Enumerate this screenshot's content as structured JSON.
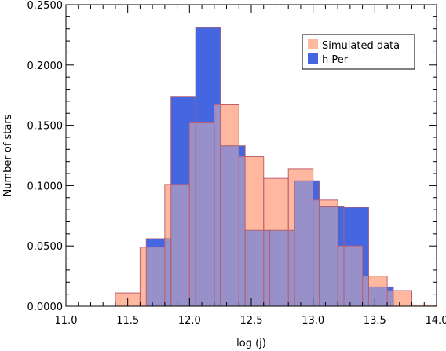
{
  "chart_data": {
    "type": "bar",
    "xlabel": "log (j)",
    "ylabel": "Number of stars",
    "xlim": [
      11.0,
      14.0
    ],
    "ylim": [
      0.0,
      0.25
    ],
    "x_ticks": [
      "11.0",
      "11.5",
      "12.0",
      "12.5",
      "13.0",
      "13.5",
      "14.0"
    ],
    "y_ticks": [
      "0.0000",
      "0.0500",
      "0.1000",
      "0.1500",
      "0.2000",
      "0.2500"
    ],
    "legend_position": "top-right",
    "series": [
      {
        "name": "h Per",
        "color": "#4466e0",
        "bins": [
          {
            "x0": 11.65,
            "x1": 11.85,
            "value": 0.056
          },
          {
            "x0": 11.85,
            "x1": 12.05,
            "value": 0.174
          },
          {
            "x0": 12.05,
            "x1": 12.25,
            "value": 0.231
          },
          {
            "x0": 12.25,
            "x1": 12.45,
            "value": 0.133
          },
          {
            "x0": 12.45,
            "x1": 12.65,
            "value": 0.063
          },
          {
            "x0": 12.65,
            "x1": 12.85,
            "value": 0.063
          },
          {
            "x0": 12.85,
            "x1": 13.05,
            "value": 0.104
          },
          {
            "x0": 13.05,
            "x1": 13.25,
            "value": 0.083
          },
          {
            "x0": 13.25,
            "x1": 13.45,
            "value": 0.082
          },
          {
            "x0": 13.45,
            "x1": 13.65,
            "value": 0.016
          }
        ]
      },
      {
        "name": "Simulated data",
        "color": "#ffb8a0",
        "bins": [
          {
            "x0": 11.4,
            "x1": 11.6,
            "value": 0.011
          },
          {
            "x0": 11.6,
            "x1": 11.8,
            "value": 0.049
          },
          {
            "x0": 11.8,
            "x1": 12.0,
            "value": 0.101
          },
          {
            "x0": 12.0,
            "x1": 12.2,
            "value": 0.152
          },
          {
            "x0": 12.2,
            "x1": 12.4,
            "value": 0.167
          },
          {
            "x0": 12.4,
            "x1": 12.6,
            "value": 0.124
          },
          {
            "x0": 12.6,
            "x1": 12.8,
            "value": 0.106
          },
          {
            "x0": 12.8,
            "x1": 13.0,
            "value": 0.114
          },
          {
            "x0": 13.0,
            "x1": 13.2,
            "value": 0.088
          },
          {
            "x0": 13.2,
            "x1": 13.4,
            "value": 0.05
          },
          {
            "x0": 13.4,
            "x1": 13.6,
            "value": 0.025
          },
          {
            "x0": 13.6,
            "x1": 13.8,
            "value": 0.013
          },
          {
            "x0": 13.8,
            "x1": 14.0,
            "value": 0.001
          }
        ]
      }
    ],
    "overlap_color": "#9890c8",
    "legend": [
      {
        "label": "Simulated data",
        "color": "#ffb8a0"
      },
      {
        "label": "h Per",
        "color": "#4466e0"
      }
    ]
  }
}
